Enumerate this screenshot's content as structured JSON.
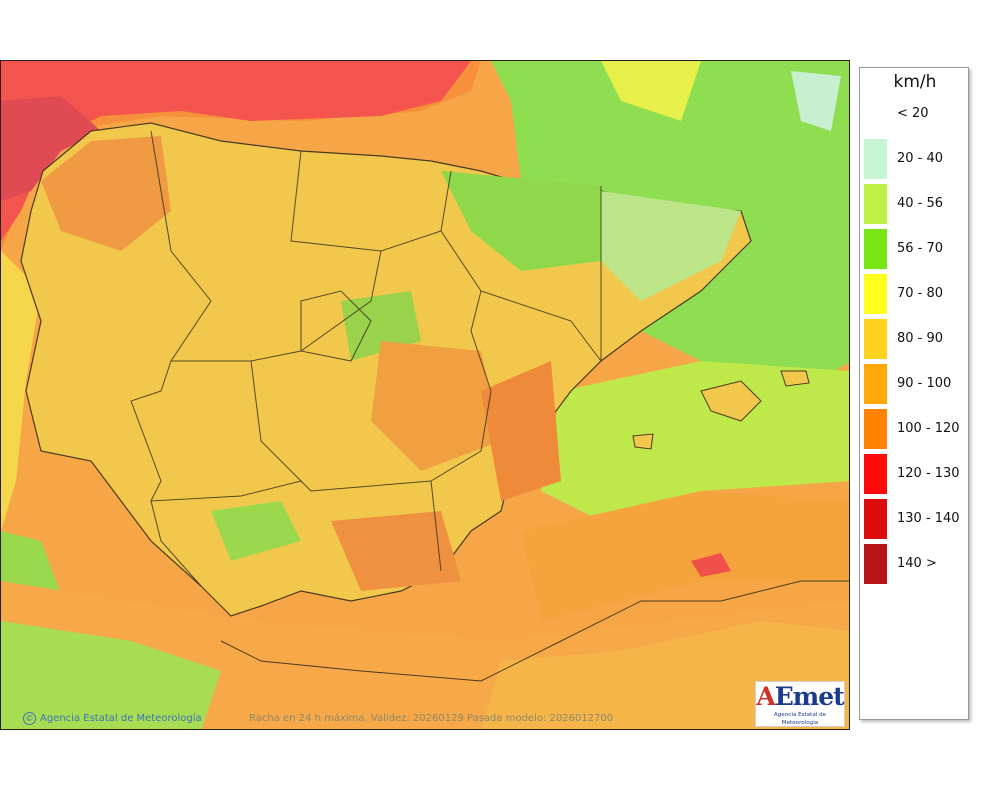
{
  "map": {
    "credit": "Agencia Estatal de Meteorología",
    "caption": "Racha en 24 h máxima. Validez: 20260129 Pasada modelo: 2026012700",
    "logo_text": "AEmet",
    "logo_subtitle": "Agencia Estatal de Meteorología"
  },
  "legend": {
    "unit": "km/h",
    "items": [
      {
        "label": "< 20",
        "color": "#ffffff"
      },
      {
        "label": "20 - 40",
        "color": "#c8f5d4"
      },
      {
        "label": "40 - 56",
        "color": "#bef046"
      },
      {
        "label": "56 - 70",
        "color": "#78e614"
      },
      {
        "label": "70 - 80",
        "color": "#ffff1e"
      },
      {
        "label": "80 - 90",
        "color": "#ffd21e"
      },
      {
        "label": "90 - 100",
        "color": "#ffaa0a"
      },
      {
        "label": "100 - 120",
        "color": "#ff8200"
      },
      {
        "label": "120 - 130",
        "color": "#ff0a0a"
      },
      {
        "label": "130 - 140",
        "color": "#dc0a0a"
      },
      {
        "label": "140 >",
        "color": "#b41414"
      }
    ]
  }
}
